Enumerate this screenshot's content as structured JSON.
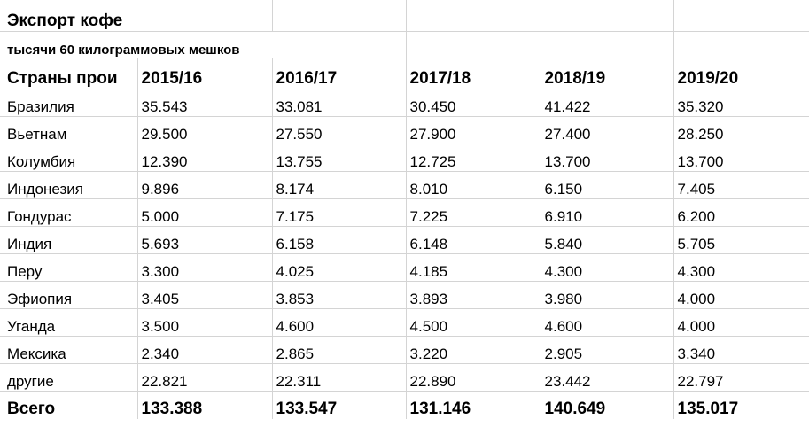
{
  "title": "Экспорт кофе",
  "subtitle": "тысячи 60 килограммовых мешков",
  "table": {
    "header": [
      "Страны прои",
      "2015/16",
      "2016/17",
      "2017/18",
      "2018/19",
      "2019/20"
    ],
    "rows": [
      [
        "Бразилия",
        "35.543",
        "33.081",
        "30.450",
        "41.422",
        "35.320"
      ],
      [
        "Вьетнам",
        "29.500",
        "27.550",
        "27.900",
        "27.400",
        "28.250"
      ],
      [
        "Колумбия",
        "12.390",
        "13.755",
        "12.725",
        "13.700",
        "13.700"
      ],
      [
        "Индонезия",
        "9.896",
        "8.174",
        "8.010",
        "6.150",
        "7.405"
      ],
      [
        "Гондурас",
        "5.000",
        "7.175",
        "7.225",
        "6.910",
        "6.200"
      ],
      [
        "Индия",
        "5.693",
        "6.158",
        "6.148",
        "5.840",
        "5.705"
      ],
      [
        "Перу",
        "3.300",
        "4.025",
        "4.185",
        "4.300",
        "4.300"
      ],
      [
        "Эфиопия",
        "3.405",
        "3.853",
        "3.893",
        "3.980",
        "4.000"
      ],
      [
        "Уганда",
        "3.500",
        "4.600",
        "4.500",
        "4.600",
        "4.000"
      ],
      [
        "Мексика",
        "2.340",
        "2.865",
        "3.220",
        "2.905",
        "3.340"
      ],
      [
        "другие",
        "22.821",
        "22.311",
        "22.890",
        "23.442",
        "22.797"
      ]
    ],
    "total": [
      "Всего",
      "133.388",
      "133.547",
      "131.146",
      "140.649",
      "135.017"
    ]
  }
}
